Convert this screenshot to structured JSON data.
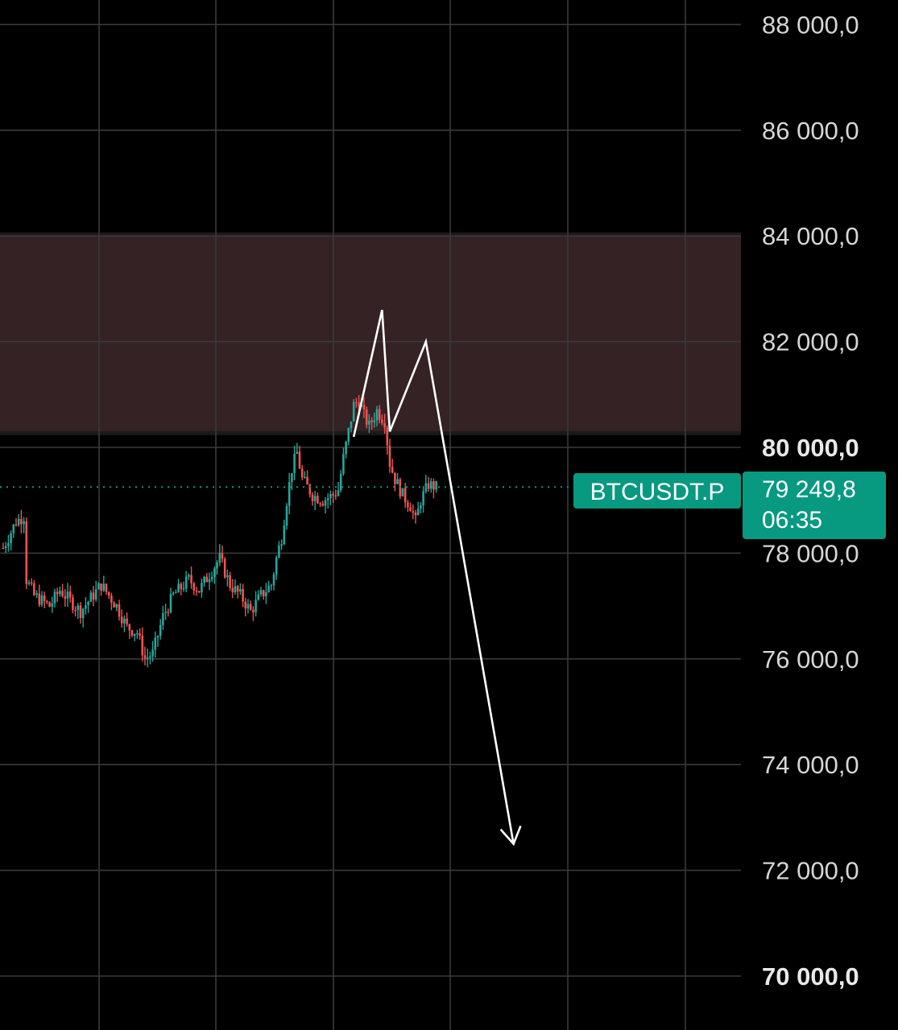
{
  "colors": {
    "background": "#000000",
    "grid": "#3a3a3a",
    "zone": "#352224",
    "up": "#26a69a",
    "down": "#ef5350",
    "badge": "#089981",
    "drawing": "#ffffff"
  },
  "chart_data": {
    "type": "candlestick",
    "symbol": "BTCUSDT.P",
    "last_price": 79249.8,
    "last_price_label": "79 249,8",
    "countdown": "06:35",
    "ylim": [
      69000,
      88500
    ],
    "y_ticks": [
      {
        "value": 88000,
        "label": "88 000,0",
        "bold": false
      },
      {
        "value": 86000,
        "label": "86 000,0",
        "bold": false
      },
      {
        "value": 84000,
        "label": "84 000,0",
        "bold": false
      },
      {
        "value": 82000,
        "label": "82 000,0",
        "bold": false
      },
      {
        "value": 80000,
        "label": "80 000,0",
        "bold": true
      },
      {
        "value": 78000,
        "label": "78 000,0",
        "bold": false
      },
      {
        "value": 76000,
        "label": "76 000,0",
        "bold": false
      },
      {
        "value": 74000,
        "label": "74 000,0",
        "bold": false
      },
      {
        "value": 72000,
        "label": "72 000,0",
        "bold": false
      },
      {
        "value": 70000,
        "label": "70 000,0",
        "bold": true
      }
    ],
    "resistance_zone": {
      "low": 80300,
      "high": 84000
    },
    "grid": true,
    "candle_count": 142,
    "price_path": [
      [
        0,
        78100
      ],
      [
        5,
        78600
      ],
      [
        8,
        78700
      ],
      [
        9,
        77500
      ],
      [
        12,
        77200
      ],
      [
        18,
        77000
      ],
      [
        22,
        77300
      ],
      [
        30,
        76900
      ],
      [
        38,
        77400
      ],
      [
        44,
        77000
      ],
      [
        48,
        76600
      ],
      [
        52,
        76500
      ],
      [
        55,
        76000
      ],
      [
        58,
        76100
      ],
      [
        62,
        76800
      ],
      [
        66,
        77200
      ],
      [
        72,
        77500
      ],
      [
        76,
        77300
      ],
      [
        80,
        77600
      ],
      [
        84,
        77900
      ],
      [
        88,
        77400
      ],
      [
        92,
        77200
      ],
      [
        96,
        76900
      ],
      [
        100,
        77200
      ],
      [
        104,
        77400
      ],
      [
        106,
        77900
      ],
      [
        108,
        78300
      ],
      [
        110,
        79000
      ],
      [
        112,
        79600
      ],
      [
        114,
        79900
      ],
      [
        116,
        79400
      ],
      [
        120,
        79100
      ],
      [
        124,
        79000
      ],
      [
        128,
        79100
      ],
      [
        130,
        79200
      ],
      [
        132,
        79800
      ],
      [
        134,
        80300
      ],
      [
        136,
        80800
      ],
      [
        138,
        80900
      ],
      [
        140,
        80600
      ],
      [
        142,
        80400
      ]
    ],
    "tail_path": [
      [
        142,
        80400
      ],
      [
        145,
        80700
      ],
      [
        148,
        80500
      ],
      [
        150,
        79700
      ],
      [
        152,
        79400
      ],
      [
        155,
        79100
      ],
      [
        158,
        78900
      ],
      [
        160,
        78600
      ],
      [
        162,
        79000
      ],
      [
        165,
        79300
      ],
      [
        168,
        79249.8
      ]
    ],
    "drawing_path": [
      {
        "bar": 136,
        "price": 80200
      },
      {
        "bar": 147,
        "price": 82600
      },
      {
        "bar": 150,
        "price": 80300
      },
      {
        "bar": 164,
        "price": 82000
      },
      {
        "bar": 198,
        "price": 72500
      }
    ]
  }
}
